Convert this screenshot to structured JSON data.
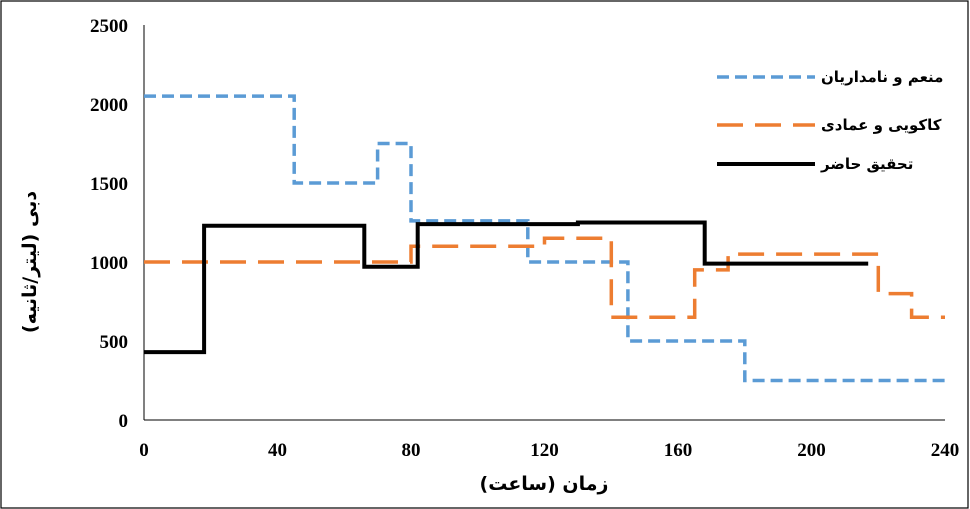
{
  "chart_data": {
    "type": "line",
    "step": true,
    "title": "",
    "xlabel": "زمان (ساعت)",
    "ylabel": "دبی (لیتر/ثانیه)",
    "xlim": [
      0,
      240
    ],
    "ylim": [
      0,
      2500
    ],
    "xticks": [
      0,
      40,
      80,
      120,
      160,
      200,
      240
    ],
    "yticks": [
      0,
      500,
      1000,
      1500,
      2000,
      2500
    ],
    "grid": false,
    "legend_position": "top-right",
    "series": [
      {
        "name": "منعم و نامداریان",
        "color": "#5B9BD5",
        "dash": "short-dash",
        "x": [
          0,
          45,
          45,
          70,
          70,
          80,
          80,
          115,
          115,
          145,
          145,
          180,
          180,
          240
        ],
        "y": [
          2050,
          2050,
          1500,
          1500,
          1750,
          1750,
          1260,
          1260,
          1000,
          1000,
          500,
          500,
          250,
          250
        ]
      },
      {
        "name": "کاکویی و عمادی",
        "color": "#ED7D31",
        "dash": "long-dash",
        "x": [
          0,
          80,
          80,
          120,
          120,
          140,
          140,
          165,
          165,
          175,
          175,
          220,
          220,
          230,
          230,
          240
        ],
        "y": [
          1000,
          1000,
          1100,
          1100,
          1150,
          1150,
          650,
          650,
          950,
          950,
          1050,
          1050,
          800,
          800,
          650,
          650
        ]
      },
      {
        "name": "تحقیق حاضر",
        "color": "#000000",
        "dash": "solid",
        "x": [
          0,
          18,
          18,
          66,
          66,
          82,
          82,
          130,
          130,
          168,
          168,
          217
        ],
        "y": [
          430,
          430,
          1230,
          1230,
          970,
          970,
          1240,
          1240,
          1250,
          1250,
          990,
          990
        ]
      }
    ]
  }
}
